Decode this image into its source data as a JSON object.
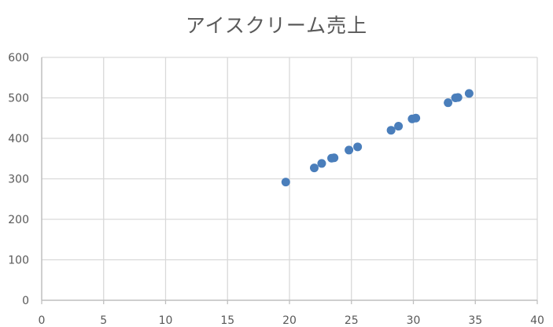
{
  "chart_data": {
    "type": "scatter",
    "title": "アイスクリーム売上",
    "xlabel": "",
    "ylabel": "",
    "xlim": [
      0,
      40
    ],
    "ylim": [
      0,
      600
    ],
    "x_ticks": [
      0,
      5,
      10,
      15,
      20,
      25,
      30,
      35,
      40
    ],
    "y_ticks": [
      0,
      100,
      200,
      300,
      400,
      500,
      600
    ],
    "grid": true,
    "legend": "none",
    "series": [
      {
        "color": "#4a7ebb",
        "points": [
          {
            "x": 19.7,
            "y": 292
          },
          {
            "x": 22.0,
            "y": 327
          },
          {
            "x": 22.6,
            "y": 338
          },
          {
            "x": 23.4,
            "y": 351
          },
          {
            "x": 23.6,
            "y": 352
          },
          {
            "x": 24.8,
            "y": 371
          },
          {
            "x": 25.5,
            "y": 379
          },
          {
            "x": 28.2,
            "y": 420
          },
          {
            "x": 28.8,
            "y": 430
          },
          {
            "x": 29.9,
            "y": 448
          },
          {
            "x": 30.2,
            "y": 450
          },
          {
            "x": 32.8,
            "y": 488
          },
          {
            "x": 33.4,
            "y": 500
          },
          {
            "x": 33.6,
            "y": 501
          },
          {
            "x": 34.5,
            "y": 511
          }
        ]
      }
    ]
  },
  "style": {
    "gridColor": "#d9d9d9",
    "axisColor": "#bfbfbf",
    "textColor": "#595959"
  }
}
